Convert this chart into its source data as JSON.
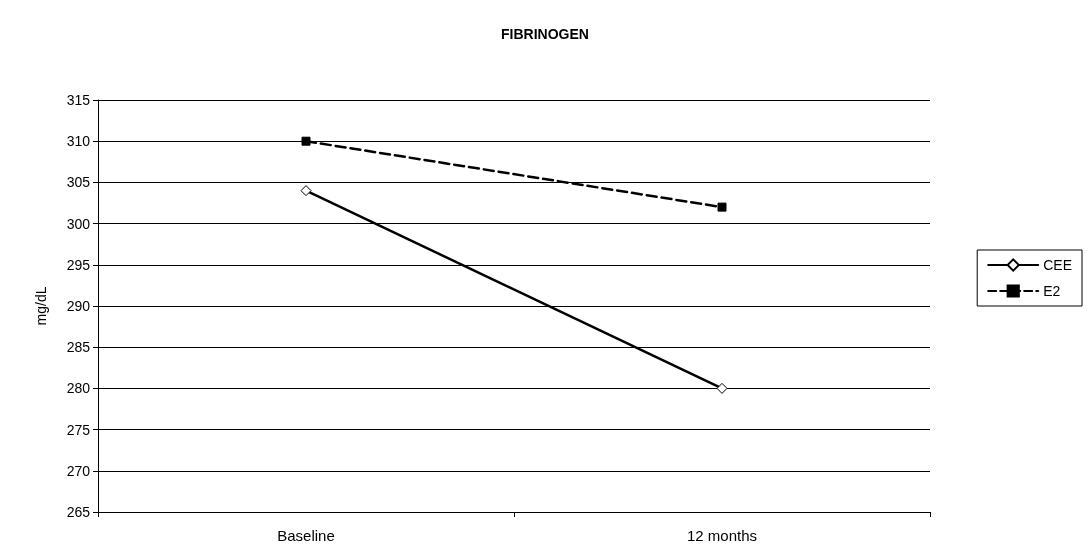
{
  "chart_data": {
    "type": "line",
    "title": "FIBRINOGEN",
    "ylabel": "mg/dL",
    "categories": [
      "Baseline",
      "12 months"
    ],
    "series": [
      {
        "name": "CEE",
        "color": "#000000",
        "values": [
          304,
          280
        ],
        "marker": "diamond",
        "line_style": "solid"
      },
      {
        "name": "E2",
        "color": "#000000",
        "values": [
          310,
          302
        ],
        "marker": "square",
        "line_style": "dashed"
      }
    ],
    "ylim": [
      265,
      315
    ],
    "yticks": [
      265,
      270,
      275,
      280,
      285,
      290,
      295,
      300,
      305,
      310,
      315
    ],
    "grid": "y",
    "legend": "right"
  }
}
